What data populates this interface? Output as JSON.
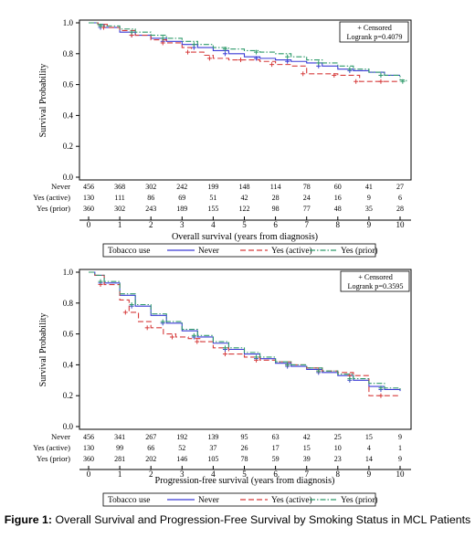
{
  "chart_data": [
    {
      "type": "line",
      "step": true,
      "xlabel": "Overall survival (years from diagnosis)",
      "ylabel": "Survival Probability",
      "xlim": [
        0,
        10
      ],
      "ylim": [
        0,
        1
      ],
      "xticks": [
        "0",
        "1",
        "2",
        "3",
        "4",
        "5",
        "6",
        "7",
        "8",
        "9",
        "10"
      ],
      "yticks": [
        "0.0",
        "0.2",
        "0.4",
        "0.6",
        "0.8",
        "1.0"
      ],
      "annotation": [
        "+ Censored",
        "Logrank p=0.4079"
      ],
      "legend_title": "Tobacco use",
      "legend_position": "bottom",
      "series": [
        {
          "name": "Never",
          "color": "#3b3bd6",
          "dash": "solid",
          "x": [
            0,
            0.3,
            0.5,
            1,
            1.5,
            2,
            2.5,
            3,
            3.5,
            4,
            4.5,
            5,
            5.5,
            6,
            6.5,
            7,
            7.5,
            8,
            8.5,
            9,
            9.5,
            10
          ],
          "y": [
            1,
            0.99,
            0.97,
            0.94,
            0.92,
            0.9,
            0.88,
            0.86,
            0.84,
            0.82,
            0.8,
            0.78,
            0.77,
            0.76,
            0.75,
            0.74,
            0.72,
            0.7,
            0.69,
            0.68,
            0.66,
            0.66
          ]
        },
        {
          "name": "Yes (active)",
          "color": "#d63b3b",
          "dash": "dashed",
          "x": [
            0,
            0.3,
            0.6,
            1,
            1.5,
            2,
            2.5,
            3,
            3.3,
            3.7,
            4,
            4.5,
            5,
            5.5,
            6,
            6.5,
            7,
            7.5,
            8,
            8.5,
            8.7,
            9,
            9.5,
            10
          ],
          "y": [
            1,
            0.99,
            0.97,
            0.95,
            0.92,
            0.89,
            0.87,
            0.84,
            0.81,
            0.79,
            0.77,
            0.76,
            0.76,
            0.75,
            0.73,
            0.72,
            0.67,
            0.67,
            0.66,
            0.66,
            0.62,
            0.62,
            0.62,
            0.62
          ]
        },
        {
          "name": "Yes (prior)",
          "color": "#2e9a6a",
          "dash": "dashdot",
          "x": [
            0,
            0.3,
            0.5,
            1,
            1.5,
            2,
            2.5,
            3,
            3.5,
            4,
            4.5,
            5,
            5.5,
            6,
            6.5,
            7,
            7.5,
            8,
            8.5,
            9,
            9.5,
            10,
            10.2
          ],
          "y": [
            1,
            0.99,
            0.98,
            0.96,
            0.94,
            0.92,
            0.9,
            0.88,
            0.86,
            0.84,
            0.83,
            0.82,
            0.81,
            0.8,
            0.78,
            0.76,
            0.74,
            0.72,
            0.7,
            0.68,
            0.66,
            0.63,
            0.62
          ]
        }
      ],
      "risk_table": {
        "rows": [
          {
            "label": "Never",
            "values": [
              "456",
              "368",
              "302",
              "242",
              "199",
              "148",
              "114",
              "78",
              "60",
              "41",
              "27"
            ]
          },
          {
            "label": "Yes (active)",
            "values": [
              "130",
              "111",
              "86",
              "69",
              "51",
              "42",
              "28",
              "24",
              "16",
              "9",
              "6"
            ]
          },
          {
            "label": "Yes (prior)",
            "values": [
              "360",
              "302",
              "243",
              "189",
              "155",
              "122",
              "98",
              "77",
              "48",
              "35",
              "28"
            ]
          }
        ]
      }
    },
    {
      "type": "line",
      "step": true,
      "xlabel": "Progression-free survival (years from diagnosis)",
      "ylabel": "Survival Probability",
      "xlim": [
        0,
        10
      ],
      "ylim": [
        0,
        1
      ],
      "xticks": [
        "0",
        "1",
        "2",
        "3",
        "4",
        "5",
        "6",
        "7",
        "8",
        "9",
        "10"
      ],
      "yticks": [
        "0.0",
        "0.2",
        "0.4",
        "0.6",
        "0.8",
        "1.0"
      ],
      "annotation": [
        "+ Censored",
        "Logrank p=0.3595"
      ],
      "legend_title": "Tobacco use",
      "legend_position": "bottom",
      "series": [
        {
          "name": "Never",
          "color": "#3b3bd6",
          "dash": "solid",
          "x": [
            0,
            0.2,
            0.5,
            1,
            1.5,
            2,
            2.5,
            3,
            3.5,
            4,
            4.5,
            5,
            5.5,
            6,
            6.5,
            7,
            7.5,
            8,
            8.5,
            9,
            9.5,
            10
          ],
          "y": [
            1,
            0.98,
            0.93,
            0.85,
            0.78,
            0.72,
            0.67,
            0.62,
            0.58,
            0.54,
            0.5,
            0.47,
            0.44,
            0.41,
            0.39,
            0.37,
            0.35,
            0.33,
            0.3,
            0.26,
            0.24,
            0.23
          ]
        },
        {
          "name": "Yes (active)",
          "color": "#d63b3b",
          "dash": "dashed",
          "x": [
            0,
            0.2,
            0.5,
            1,
            1.3,
            1.6,
            2,
            2.4,
            2.8,
            3.2,
            3.6,
            4,
            4.5,
            5,
            5.5,
            6,
            6.5,
            7,
            7.5,
            8,
            8.5,
            9,
            9.5,
            10
          ],
          "y": [
            1,
            0.98,
            0.92,
            0.82,
            0.74,
            0.68,
            0.64,
            0.6,
            0.58,
            0.57,
            0.55,
            0.51,
            0.47,
            0.45,
            0.43,
            0.42,
            0.4,
            0.38,
            0.36,
            0.35,
            0.33,
            0.2,
            0.2,
            0.2
          ]
        },
        {
          "name": "Yes (prior)",
          "color": "#2e9a6a",
          "dash": "dashdot",
          "x": [
            0,
            0.2,
            0.5,
            1,
            1.5,
            2,
            2.5,
            3,
            3.5,
            4,
            4.5,
            5,
            5.5,
            6,
            6.5,
            7,
            7.5,
            8,
            8.5,
            9,
            9.5,
            10
          ],
          "y": [
            1,
            0.98,
            0.94,
            0.86,
            0.79,
            0.73,
            0.68,
            0.63,
            0.59,
            0.55,
            0.51,
            0.48,
            0.45,
            0.42,
            0.4,
            0.38,
            0.36,
            0.34,
            0.31,
            0.28,
            0.25,
            0.24
          ]
        }
      ],
      "risk_table": {
        "rows": [
          {
            "label": "Never",
            "values": [
              "456",
              "341",
              "267",
              "192",
              "139",
              "95",
              "63",
              "42",
              "25",
              "15",
              "9"
            ]
          },
          {
            "label": "Yes (active)",
            "values": [
              "130",
              "99",
              "66",
              "52",
              "37",
              "26",
              "17",
              "15",
              "10",
              "4",
              "1"
            ]
          },
          {
            "label": "Yes (prior)",
            "values": [
              "360",
              "281",
              "202",
              "146",
              "105",
              "78",
              "59",
              "39",
              "23",
              "14",
              "9"
            ]
          }
        ]
      }
    }
  ],
  "caption": {
    "label": "Figure 1:",
    "text": " Overall Survival and Progression-Free Survival by Smoking Status in MCL Patients"
  }
}
